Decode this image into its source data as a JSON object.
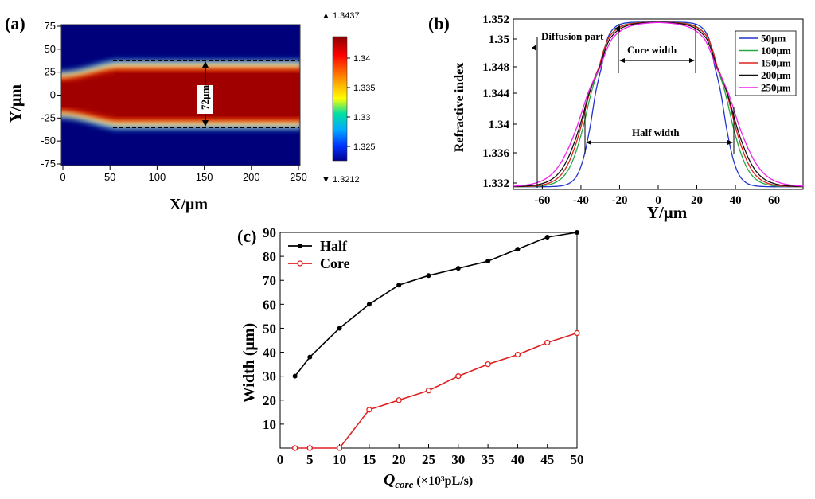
{
  "chart_data": [
    {
      "panel": "(a)",
      "type": "heatmap",
      "xlabel": "X/μm",
      "ylabel": "Y/μm",
      "xticks": [
        0,
        50,
        100,
        150,
        200,
        250
      ],
      "yticks": [
        75,
        50,
        25,
        0,
        -25,
        -50,
        -75
      ],
      "xlim": [
        0,
        250
      ],
      "ylim": [
        -75,
        75
      ],
      "annotation": "72μm",
      "colorbar": {
        "max_label": "▲ 1.3437",
        "min_label": "▼ 1.3212",
        "ticks": [
          "1.34",
          "1.335",
          "1.33",
          "1.325"
        ],
        "range": [
          1.3212,
          1.3437
        ]
      }
    },
    {
      "panel": "(b)",
      "type": "line",
      "xlabel": "Y/μm",
      "ylabel": "Refractive index",
      "xticks": [
        -60,
        -40,
        -20,
        0,
        20,
        40,
        60
      ],
      "yticks": [
        "1.352",
        "1.35",
        "1.348",
        "1.344",
        "1.34",
        "1.336",
        "1.332"
      ],
      "xlim": [
        -75,
        75
      ],
      "annotations": [
        "Diffusion part",
        "Core width",
        "Half width"
      ],
      "series": [
        {
          "name": "50μm",
          "color": "#2233cc"
        },
        {
          "name": "100μm",
          "color": "#22aa44"
        },
        {
          "name": "150μm",
          "color": "#dd2222"
        },
        {
          "name": "200μm",
          "color": "#111111"
        },
        {
          "name": "250μm",
          "color": "#ee22ee"
        }
      ]
    },
    {
      "panel": "(c)",
      "type": "line",
      "xlabel": "Q",
      "xlabel_sub": "core",
      "xlabel_unit": " (×10³pL/s)",
      "ylabel": "Width (μm)",
      "x": [
        2.5,
        5,
        10,
        15,
        20,
        25,
        30,
        35,
        40,
        45,
        50
      ],
      "xticks": [
        0,
        5,
        10,
        15,
        20,
        25,
        30,
        35,
        40,
        45,
        50
      ],
      "yticks": [
        10,
        20,
        30,
        40,
        50,
        60,
        70,
        80,
        90
      ],
      "xlim": [
        0,
        50
      ],
      "ylim": [
        0,
        90
      ],
      "series": [
        {
          "name": "Half",
          "color": "#000000",
          "values": [
            30,
            38,
            50,
            60,
            68,
            72,
            75,
            78,
            83,
            88,
            90
          ]
        },
        {
          "name": "Core",
          "color": "#e02020",
          "values": [
            0,
            0,
            0,
            16,
            20,
            24,
            30,
            35,
            39,
            44,
            48
          ]
        }
      ]
    }
  ],
  "colors": {
    "core_red": "#a00000",
    "clad_blue": "#00007a"
  }
}
